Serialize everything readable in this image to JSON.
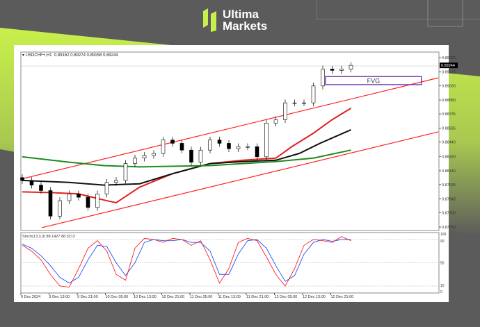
{
  "brand": {
    "line1": "Ultima",
    "line2": "Markets",
    "accent": "#c8f04b"
  },
  "header": {
    "symbol": "USDCHF+,H1",
    "ohlc": "0.89162 0.89274 0.89158 0.89244"
  },
  "annotation": {
    "fvg_label": "FVG",
    "fvg_color": "#6a2bb0"
  },
  "chart_data": {
    "type": "candlestick",
    "symbol": "USDCHF+",
    "timeframe": "H1",
    "price_axis": {
      "ticks": [
        "0.89325",
        "0.89175",
        "0.89030",
        "0.88880",
        "0.88735",
        "0.88585",
        "0.88440",
        "0.88290",
        "0.88140",
        "0.87995",
        "0.87845",
        "0.87700",
        "0.87550"
      ],
      "range": [
        0.8755,
        0.89325
      ],
      "current_price": "0.89244"
    },
    "time_axis": {
      "ticks": [
        "9 Dec 2024",
        "9 Dec 13:00",
        "9 Dec 21:00",
        "10 Dec 05:00",
        "10 Dec 13:00",
        "10 Dec 21:00",
        "11 Dec 05:00",
        "11 Dec 13:00",
        "11 Dec 21:00",
        "12 Dec 05:00",
        "12 Dec 13:00",
        "12 Dec 21:00"
      ]
    },
    "closes": [
      0.88038,
      0.87989,
      0.87932,
      0.87664,
      0.87826,
      0.87897,
      0.87862,
      0.87755,
      0.87897,
      0.88017,
      0.88038,
      0.88215,
      0.88272,
      0.883,
      0.88321,
      0.88462,
      0.88427,
      0.88356,
      0.88229,
      0.88356,
      0.88462,
      0.88427,
      0.88371,
      0.88392,
      0.88392,
      0.88286,
      0.88639,
      0.88675,
      0.88851,
      0.88851,
      0.88851,
      0.89028,
      0.89205,
      0.89191,
      0.89205,
      0.89244
    ],
    "moving_averages": [
      {
        "color": "#e02020",
        "points": [
          [
            0,
            0.87918
          ],
          [
            3,
            0.87911
          ],
          [
            6,
            0.87897
          ],
          [
            9,
            0.87826
          ],
          [
            10,
            0.87805
          ],
          [
            12.5,
            0.87968
          ],
          [
            16,
            0.88109
          ],
          [
            20,
            0.88215
          ],
          [
            23.5,
            0.8825
          ],
          [
            27,
            0.88272
          ],
          [
            28.7,
            0.88392
          ],
          [
            31,
            0.88533
          ],
          [
            33,
            0.88675
          ],
          [
            35,
            0.88795
          ]
        ]
      },
      {
        "color": "#111111",
        "points": [
          [
            0,
            0.88038
          ],
          [
            5,
            0.88017
          ],
          [
            8.7,
            0.87989
          ],
          [
            12.5,
            0.88003
          ],
          [
            16,
            0.88109
          ],
          [
            20,
            0.88215
          ],
          [
            23.5,
            0.88236
          ],
          [
            27,
            0.8825
          ],
          [
            29.5,
            0.88321
          ],
          [
            31.7,
            0.88427
          ],
          [
            35,
            0.88569
          ]
        ]
      },
      {
        "color": "#1e8a1e",
        "points": [
          [
            0,
            0.88286
          ],
          [
            5,
            0.88229
          ],
          [
            8.7,
            0.88194
          ],
          [
            12.5,
            0.8818
          ],
          [
            20,
            0.88194
          ],
          [
            27,
            0.88236
          ],
          [
            31,
            0.88272
          ],
          [
            35,
            0.88356
          ]
        ]
      }
    ],
    "channel": {
      "color": "#ff2020",
      "upper": [
        [
          -0.15,
          0.88052
        ],
        [
          44.3,
          0.89113
        ]
      ],
      "lower": [
        [
          2.07,
          0.87543
        ],
        [
          44.3,
          0.88547
        ]
      ]
    },
    "fvg_zone": {
      "from_index": 32.3,
      "to_index": 42.5,
      "top": 0.89127,
      "bottom": 0.89042
    },
    "stochastic": {
      "label": "Stoch(13,3,3) 88.1427 88.3213",
      "levels": [
        "90",
        "50",
        "10"
      ],
      "axis_labels": [
        "100",
        "90",
        "50",
        "10",
        "0"
      ],
      "main": [
        80,
        70,
        55,
        30,
        10,
        8,
        40,
        75,
        88,
        70,
        30,
        20,
        75,
        92,
        90,
        85,
        92,
        90,
        80,
        88,
        55,
        15,
        40,
        85,
        92,
        88,
        60,
        30,
        10,
        40,
        80,
        90,
        88,
        85,
        95,
        88
      ],
      "signal": [
        82,
        75,
        62,
        45,
        25,
        15,
        25,
        55,
        80,
        78,
        50,
        28,
        50,
        85,
        90,
        88,
        88,
        90,
        85,
        85,
        70,
        30,
        30,
        65,
        88,
        90,
        75,
        45,
        18,
        28,
        65,
        85,
        90,
        87,
        90,
        90
      ],
      "main_color": "#ff2020",
      "signal_color": "#2050ff"
    }
  }
}
